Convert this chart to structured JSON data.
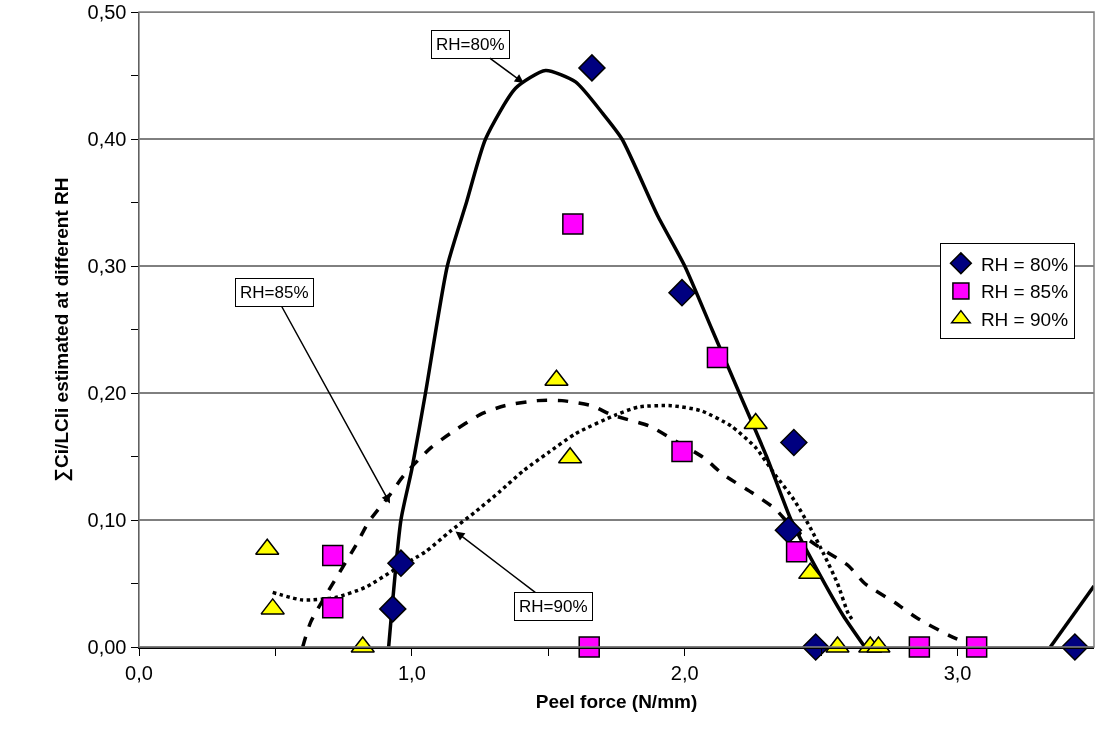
{
  "chart_data": {
    "type": "scatter",
    "xlabel": "Peel force (N/mm)",
    "ylabel": "∑Ci/LCli estimated at different RH",
    "xlim": [
      0,
      3.5
    ],
    "ylim": [
      0,
      0.5
    ],
    "xticks": [
      {
        "value": 0,
        "label": "0,0"
      },
      {
        "value": 0.5,
        "label": null
      },
      {
        "value": 1,
        "label": "1,0"
      },
      {
        "value": 1.5,
        "label": null
      },
      {
        "value": 2,
        "label": "2,0"
      },
      {
        "value": 2.5,
        "label": null
      },
      {
        "value": 3,
        "label": "3,0"
      }
    ],
    "yticks": [
      {
        "value": 0,
        "label": "0,00"
      },
      {
        "value": 0.05,
        "label": null
      },
      {
        "value": 0.1,
        "label": "0,10"
      },
      {
        "value": 0.15,
        "label": null
      },
      {
        "value": 0.2,
        "label": "0,20"
      },
      {
        "value": 0.25,
        "label": null
      },
      {
        "value": 0.3,
        "label": "0,30"
      },
      {
        "value": 0.35,
        "label": null
      },
      {
        "value": 0.4,
        "label": "0,40"
      },
      {
        "value": 0.45,
        "label": null
      },
      {
        "value": 0.5,
        "label": "0,50"
      }
    ],
    "grid": "y",
    "legend": "right",
    "series": [
      {
        "name": "RH = 80%",
        "color": "#000080",
        "marker": "diamond",
        "x": [
          0.93,
          0.96,
          1.66,
          1.99,
          2.4,
          2.38,
          2.48,
          3.43
        ],
        "values": [
          0.03,
          0.066,
          0.456,
          0.279,
          0.161,
          0.092,
          0,
          0
        ]
      },
      {
        "name": "RH = 85%",
        "color": "#ff00ff",
        "marker": "square",
        "x": [
          0.71,
          0.71,
          1.59,
          2.12,
          1.99,
          2.41,
          1.65,
          2.86,
          3.07
        ],
        "values": [
          0.072,
          0.031,
          0.333,
          0.228,
          0.154,
          0.075,
          0,
          0,
          0
        ]
      },
      {
        "name": "RH = 90%",
        "color": "#ffff00",
        "marker": "triangle",
        "x": [
          0.47,
          0.49,
          0.82,
          1.53,
          1.58,
          2.26,
          2.46,
          2.56,
          2.68,
          2.71
        ],
        "values": [
          0.077,
          0.03,
          0,
          0.21,
          0.149,
          0.176,
          0.058,
          0,
          0,
          0
        ]
      },
      {
        "type": "line",
        "color": "#000000",
        "marker": "none",
        "line_style": "solid",
        "x": [
          0.915,
          0.96,
          1,
          1.05,
          1.13,
          1.2,
          1.27,
          1.38,
          1.49,
          1.6,
          1.7,
          1.77,
          1.9,
          2,
          2.1,
          2.2,
          2.3,
          2.39,
          2.5,
          2.58,
          2.66,
          3.0,
          3.34,
          3.5
        ],
        "values": [
          0,
          0.1,
          0.14,
          0.2,
          0.3,
          0.35,
          0.4,
          0.44,
          0.454,
          0.445,
          0.42,
          0.4,
          0.34,
          0.3,
          0.25,
          0.2,
          0.15,
          0.1,
          0.055,
          0.025,
          0,
          null,
          0,
          0.048
        ]
      },
      {
        "type": "line",
        "color": "#000000",
        "marker": "none",
        "line_style": "dashed",
        "x": [
          0.6,
          0.63,
          0.8,
          0.84,
          0.92,
          0.97,
          1.07,
          1.14,
          1.25,
          1.34,
          1.46,
          1.55,
          1.66,
          1.73,
          1.87,
          1.96,
          2.07,
          2.14,
          2.25,
          2.33,
          2.4,
          2.49,
          2.6,
          2.66,
          2.77,
          2.85,
          2.97,
          3.07
        ],
        "values": [
          0,
          0.02,
          0.082,
          0.098,
          0.12,
          0.135,
          0.157,
          0.168,
          0.183,
          0.19,
          0.194,
          0.194,
          0.19,
          0.183,
          0.174,
          0.163,
          0.149,
          0.136,
          0.121,
          0.109,
          0.093,
          0.079,
          0.064,
          0.05,
          0.035,
          0.023,
          0.009,
          0
        ]
      },
      {
        "type": "line",
        "color": "#000000",
        "marker": "none",
        "line_style": "dotted",
        "x": [
          0.49,
          0.6,
          0.72,
          0.83,
          0.93,
          1.05,
          1.14,
          1.23,
          1.32,
          1.41,
          1.5,
          1.6,
          1.75,
          1.83,
          1.95,
          2.06,
          2.17,
          2.26,
          2.33,
          2.4,
          2.46,
          2.51,
          2.56,
          2.6,
          2.62
        ],
        "values": [
          0.043,
          0.037,
          0.039,
          0.047,
          0.06,
          0.075,
          0.091,
          0.106,
          0.122,
          0.139,
          0.153,
          0.168,
          0.183,
          0.189,
          0.19,
          0.186,
          0.174,
          0.157,
          0.136,
          0.116,
          0.094,
          0.073,
          0.05,
          0.026,
          0.02
        ]
      }
    ],
    "annotations": [
      {
        "text": "RH=80%",
        "x": 1.41,
        "y": 0.444
      },
      {
        "text": "RH=85%",
        "x": 0.92,
        "y": 0.113
      },
      {
        "text": "RH=90%",
        "x": 1.16,
        "y": 0.091
      }
    ]
  }
}
